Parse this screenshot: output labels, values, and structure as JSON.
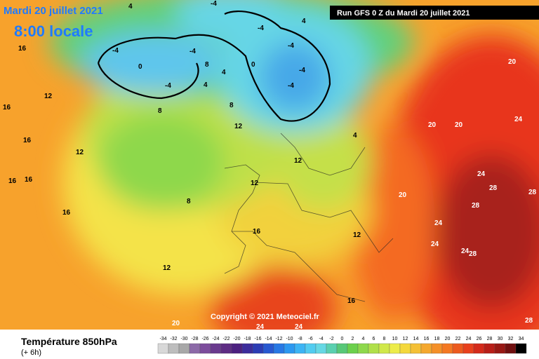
{
  "header": {
    "date": "Mardi 20 juillet 2021",
    "time": "8:00 locale",
    "run": "Run GFS 0 Z du Mardi 20 juillet 2021",
    "copyright": "Copyright © 2021 Meteociel.fr"
  },
  "legend": {
    "title": "Température 850hPa",
    "lead": "(+ 6h)",
    "scale": [
      -34,
      -32,
      -30,
      -28,
      -26,
      -24,
      -22,
      -20,
      -18,
      -16,
      -14,
      -12,
      -10,
      -8,
      -6,
      -4,
      -2,
      0,
      2,
      4,
      6,
      8,
      10,
      12,
      14,
      16,
      18,
      20,
      22,
      24,
      26,
      28,
      30,
      32,
      34
    ]
  },
  "contour_labels": [
    -4,
    -4,
    -4,
    -4,
    -4,
    -4,
    -4,
    -4,
    0,
    0,
    4,
    4,
    4,
    4,
    4,
    8,
    8,
    8,
    8,
    12,
    12,
    12,
    12,
    12,
    12,
    12,
    16,
    16,
    16,
    16,
    16,
    16,
    16,
    16,
    20,
    20,
    20,
    20,
    20,
    24,
    24,
    24,
    24,
    24,
    24,
    24,
    28,
    28,
    28,
    28,
    28
  ]
}
